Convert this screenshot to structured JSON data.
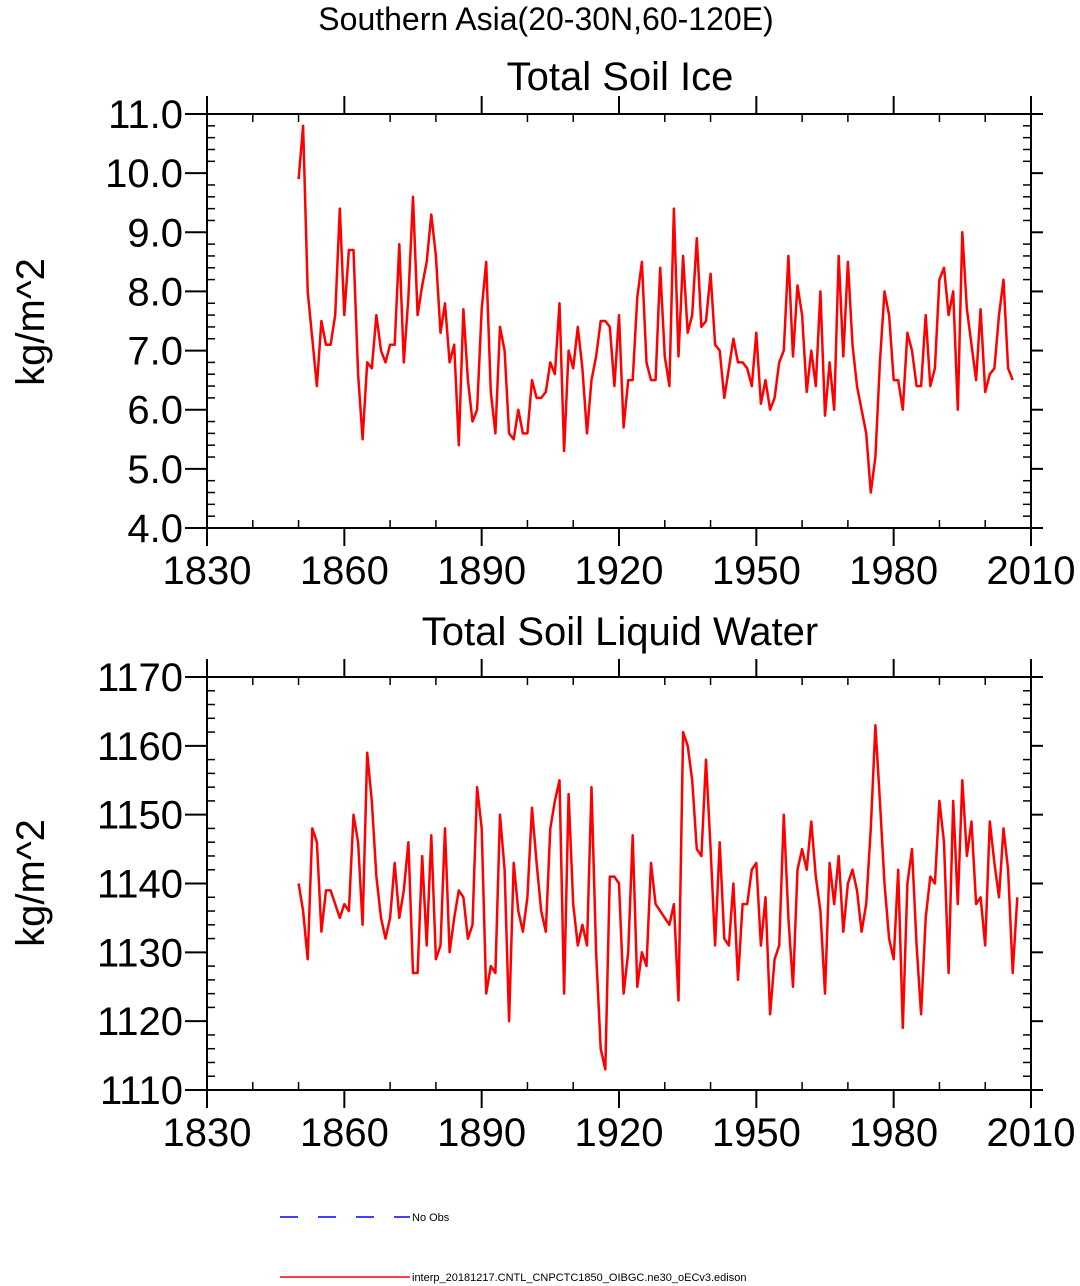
{
  "figure": {
    "title": "Southern Asia(20-30N,60-120E)"
  },
  "chart_data": [
    {
      "type": "line",
      "title": "Total Soil Ice",
      "xlabel": "",
      "ylabel": "kg/m^2",
      "xlim": [
        1830,
        2010
      ],
      "ylim": [
        4.0,
        11.0
      ],
      "xticks": [
        1830,
        1860,
        1890,
        1920,
        1950,
        1980,
        2010
      ],
      "yticks": [
        4.0,
        5.0,
        6.0,
        7.0,
        8.0,
        9.0,
        10.0,
        11.0
      ],
      "ytick_labels": [
        "4.0",
        "5.0",
        "6.0",
        "7.0",
        "8.0",
        "9.0",
        "10.0",
        "11.0"
      ],
      "series": [
        {
          "name": "interp_20181217.CNTL_CNPCTC1850_OIBGC.ne30_oECv3.edison",
          "color": "#ff0000",
          "x_start": 1850,
          "x_step": 1,
          "values": [
            9.9,
            10.8,
            8.0,
            7.2,
            6.4,
            7.5,
            7.1,
            7.1,
            7.6,
            9.4,
            7.6,
            8.7,
            8.7,
            6.6,
            5.5,
            6.8,
            6.7,
            7.6,
            7.0,
            6.8,
            7.1,
            7.1,
            8.8,
            6.8,
            7.9,
            9.6,
            7.6,
            8.1,
            8.5,
            9.3,
            8.6,
            7.3,
            7.8,
            6.8,
            7.1,
            5.4,
            7.7,
            6.5,
            5.8,
            6.0,
            7.7,
            8.5,
            6.3,
            5.6,
            7.4,
            7.0,
            5.6,
            5.5,
            6.0,
            5.6,
            5.6,
            6.5,
            6.2,
            6.2,
            6.3,
            6.8,
            6.6,
            7.8,
            5.3,
            7.0,
            6.7,
            7.4,
            6.7,
            5.6,
            6.5,
            6.9,
            7.5,
            7.5,
            7.4,
            6.4,
            7.6,
            5.7,
            6.5,
            6.5,
            7.9,
            8.5,
            6.8,
            6.5,
            6.5,
            8.4,
            6.9,
            6.4,
            9.4,
            6.9,
            8.6,
            7.3,
            7.6,
            8.9,
            7.4,
            7.5,
            8.3,
            7.1,
            7.0,
            6.2,
            6.7,
            7.2,
            6.8,
            6.8,
            6.7,
            6.4,
            7.3,
            6.1,
            6.5,
            6.0,
            6.2,
            6.8,
            7.0,
            8.6,
            6.9,
            8.1,
            7.6,
            6.3,
            7.0,
            6.4,
            8.0,
            5.9,
            6.8,
            6.0,
            8.6,
            6.9,
            8.5,
            7.1,
            6.4,
            6.0,
            5.6,
            4.6,
            5.2,
            6.8,
            8.0,
            7.6,
            6.5,
            6.5,
            6.0,
            7.3,
            7.0,
            6.4,
            6.4,
            7.6,
            6.4,
            6.7,
            8.2,
            8.4,
            7.6,
            8.0,
            6.0,
            9.0,
            7.7,
            7.1,
            6.5,
            7.7,
            6.3,
            6.6,
            6.7,
            7.6,
            8.2,
            6.7,
            6.5
          ]
        }
      ]
    },
    {
      "type": "line",
      "title": "Total Soil Liquid Water",
      "xlabel": "",
      "ylabel": "kg/m^2",
      "xlim": [
        1830,
        2010
      ],
      "ylim": [
        1110,
        1170
      ],
      "xticks": [
        1830,
        1860,
        1890,
        1920,
        1950,
        1980,
        2010
      ],
      "yticks": [
        1110,
        1120,
        1130,
        1140,
        1150,
        1160,
        1170
      ],
      "ytick_labels": [
        "1110",
        "1120",
        "1130",
        "1140",
        "1150",
        "1160",
        "1170"
      ],
      "series": [
        {
          "name": "interp_20181217.CNTL_CNPCTC1850_OIBGC.ne30_oECv3.edison",
          "color": "#ff0000",
          "x_start": 1850,
          "x_step": 1,
          "values": [
            1140,
            1136,
            1129,
            1148,
            1146,
            1133,
            1139,
            1139,
            1137,
            1135,
            1137,
            1136,
            1150,
            1146,
            1134,
            1159,
            1152,
            1141,
            1135,
            1132,
            1135,
            1143,
            1135,
            1139,
            1146,
            1127,
            1127,
            1144,
            1131,
            1147,
            1129,
            1131,
            1148,
            1130,
            1135,
            1139,
            1138,
            1132,
            1134,
            1154,
            1148,
            1124,
            1128,
            1127,
            1150,
            1142,
            1120,
            1143,
            1136,
            1133,
            1138,
            1151,
            1143,
            1136,
            1133,
            1148,
            1152,
            1155,
            1124,
            1153,
            1137,
            1131,
            1134,
            1131,
            1154,
            1130,
            1116,
            1113,
            1141,
            1141,
            1140,
            1124,
            1130,
            1147,
            1125,
            1130,
            1128,
            1143,
            1137,
            1136,
            1135,
            1134,
            1137,
            1123,
            1162,
            1160,
            1155,
            1145,
            1144,
            1158,
            1145,
            1131,
            1146,
            1132,
            1131,
            1140,
            1126,
            1137,
            1137,
            1142,
            1143,
            1131,
            1138,
            1121,
            1129,
            1131,
            1150,
            1135,
            1125,
            1142,
            1145,
            1142,
            1149,
            1141,
            1136,
            1124,
            1143,
            1137,
            1144,
            1133,
            1140,
            1142,
            1139,
            1133,
            1137,
            1148,
            1163,
            1152,
            1140,
            1132,
            1129,
            1142,
            1119,
            1140,
            1145,
            1131,
            1121,
            1135,
            1141,
            1140,
            1152,
            1146,
            1127,
            1152,
            1137,
            1155,
            1144,
            1149,
            1137,
            1138,
            1131,
            1149,
            1143,
            1138,
            1148,
            1142,
            1127,
            1138
          ]
        }
      ]
    }
  ],
  "legend": [
    {
      "label": "No Obs",
      "color": "#0000ff",
      "style": "dashed"
    },
    {
      "label": "interp_20181217.CNTL_CNPCTC1850_OIBGC.ne30_oECv3.edison",
      "color": "#ff0000",
      "style": "solid"
    }
  ]
}
